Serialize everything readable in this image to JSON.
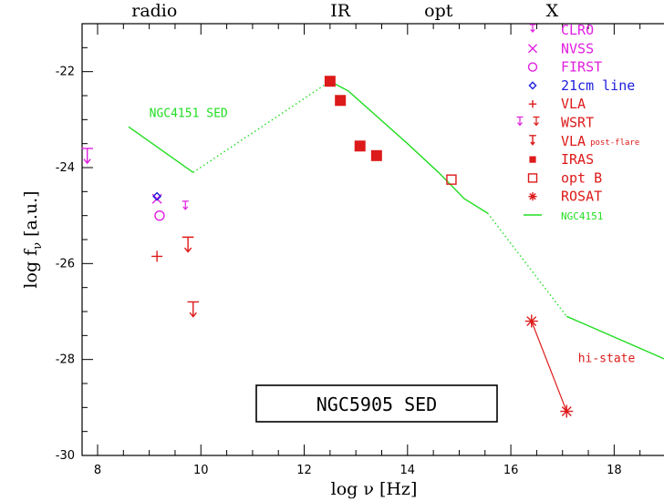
{
  "chart_data": {
    "type": "scatter",
    "title": "NGC5905 SED",
    "xlabel": "log ν [Hz]",
    "ylabel": "log fν [a.u.]",
    "ylabel_main": "log f",
    "ylabel_sub": "ν",
    "ylabel_unit": "[a.u.]",
    "xlim": [
      7.7,
      19.0
    ],
    "ylim": [
      -30,
      -21.0
    ],
    "x_ticks": [
      8,
      10,
      12,
      14,
      16,
      18
    ],
    "y_ticks": [
      -30,
      -28,
      -26,
      -24,
      -22
    ],
    "band_labels": [
      {
        "text": "radio",
        "x": 9.1
      },
      {
        "text": "IR",
        "x": 12.7
      },
      {
        "text": "opt",
        "x": 14.6
      },
      {
        "text": "X",
        "x": 16.8
      }
    ],
    "legend_items": [
      {
        "label": "CLRO",
        "symbol": "upper-limit-small",
        "color": "#e020e0"
      },
      {
        "label": "NVSS",
        "symbol": "cross-x",
        "color": "#e020e0"
      },
      {
        "label": "FIRST",
        "symbol": "circle-open",
        "color": "#e020e0"
      },
      {
        "label": "21cm line",
        "symbol": "diamond-open",
        "color": "#2020dd"
      },
      {
        "label": "VLA",
        "symbol": "plus",
        "color": "#dd1a1a"
      },
      {
        "label": "WSRT",
        "symbol": "upper-limit-pair",
        "color": "#dd1a1a"
      },
      {
        "label": "VLA",
        "label_sub": "post-flare",
        "symbol": "upper-limit",
        "color": "#dd1a1a"
      },
      {
        "label": "IRAS",
        "symbol": "square-filled",
        "color": "#dd1a1a"
      },
      {
        "label": "opt B",
        "symbol": "square-open",
        "color": "#dd1a1a"
      },
      {
        "label": "ROSAT",
        "symbol": "asterisk",
        "color": "#dd1a1a"
      },
      {
        "label": "NGC4151",
        "symbol": "line",
        "color": "#22dd22"
      }
    ],
    "series": [
      {
        "name": "CLRO",
        "symbol": "upper-limit",
        "color": "#e020e0",
        "points": [
          [
            7.8,
            -23.6
          ]
        ]
      },
      {
        "name": "CLRO",
        "symbol": "upper-limit-small",
        "color": "#e020e0",
        "points": [
          [
            9.7,
            -24.7
          ]
        ]
      },
      {
        "name": "NVSS",
        "symbol": "cross-x",
        "color": "#e020e0",
        "points": [
          [
            9.15,
            -24.65
          ]
        ]
      },
      {
        "name": "FIRST",
        "symbol": "circle-open",
        "color": "#e020e0",
        "points": [
          [
            9.2,
            -25.0
          ]
        ]
      },
      {
        "name": "21cm line",
        "symbol": "diamond-open",
        "color": "#2020dd",
        "points": [
          [
            9.15,
            -24.6
          ]
        ]
      },
      {
        "name": "VLA",
        "symbol": "plus",
        "color": "#dd1a1a",
        "points": [
          [
            9.15,
            -25.85
          ]
        ]
      },
      {
        "name": "WSRT",
        "symbol": "upper-limit",
        "color": "#dd1a1a",
        "points": [
          [
            9.75,
            -25.45
          ]
        ]
      },
      {
        "name": "VLA post-flare",
        "symbol": "upper-limit",
        "color": "#dd1a1a",
        "points": [
          [
            9.85,
            -26.8
          ]
        ]
      },
      {
        "name": "IRAS",
        "symbol": "square-filled",
        "color": "#dd1a1a",
        "points": [
          [
            12.5,
            -22.2
          ],
          [
            12.7,
            -22.6
          ],
          [
            13.08,
            -23.55
          ],
          [
            13.4,
            -23.75
          ]
        ]
      },
      {
        "name": "opt B",
        "symbol": "square-open",
        "color": "#dd1a1a",
        "points": [
          [
            14.85,
            -24.25
          ]
        ]
      },
      {
        "name": "ROSAT",
        "symbol": "asterisk",
        "color": "#dd1a1a",
        "points": [
          [
            16.4,
            -27.2
          ],
          [
            17.08,
            -29.08
          ]
        ]
      }
    ],
    "ngc4151_sed": {
      "name": "NGC4151 SED",
      "color": "#22dd22",
      "solid_segments": [
        [
          [
            8.6,
            -23.15
          ],
          [
            9.85,
            -24.1
          ]
        ],
        [
          [
            12.5,
            -22.2
          ],
          [
            12.85,
            -22.4
          ],
          [
            14.0,
            -23.5
          ],
          [
            14.6,
            -24.1
          ],
          [
            15.1,
            -24.65
          ],
          [
            15.55,
            -24.95
          ]
        ],
        [
          [
            17.08,
            -27.1
          ],
          [
            19.0,
            -28.0
          ]
        ]
      ],
      "dotted_segments": [
        [
          [
            9.85,
            -24.1
          ],
          [
            12.5,
            -22.2
          ]
        ],
        [
          [
            15.55,
            -24.95
          ],
          [
            17.08,
            -27.1
          ]
        ]
      ],
      "label_x": 9.0,
      "label_y": -22.95
    },
    "annotations": [
      {
        "text": "NGC4151 SED",
        "color": "#22dd22"
      },
      {
        "text": "hi-state",
        "color": "#dd1a1a",
        "x": 17.3,
        "y": -28.05
      }
    ],
    "rosat_connector": {
      "from": [
        16.4,
        -27.2
      ],
      "to": [
        17.08,
        -29.08
      ],
      "color": "#dd1a1a"
    },
    "grid": false,
    "legend": "top-right"
  }
}
